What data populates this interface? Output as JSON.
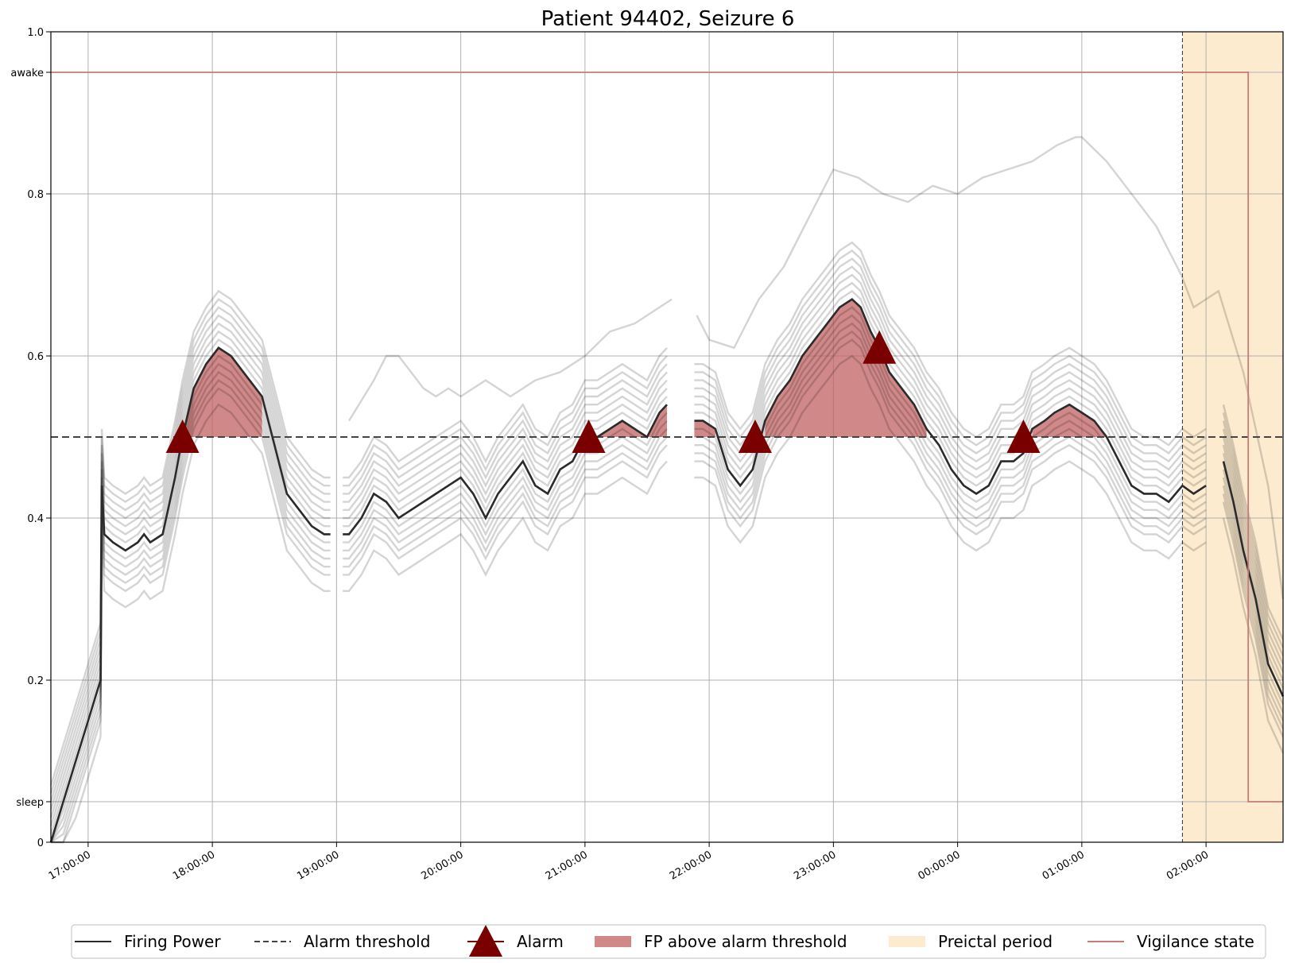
{
  "chart_data": {
    "type": "line",
    "title": "Patient 94402, Seizure 6",
    "xlabel": "",
    "ylabel": "",
    "ylim": [
      0,
      1.0
    ],
    "xlim_hours": [
      16.7,
      26.62
    ],
    "x_ticks": [
      {
        "label": "17:00:00",
        "hour": 17
      },
      {
        "label": "18:00:00",
        "hour": 18
      },
      {
        "label": "19:00:00",
        "hour": 19
      },
      {
        "label": "20:00:00",
        "hour": 20
      },
      {
        "label": "21:00:00",
        "hour": 21
      },
      {
        "label": "22:00:00",
        "hour": 22
      },
      {
        "label": "23:00:00",
        "hour": 23
      },
      {
        "label": "00:00:00",
        "hour": 24
      },
      {
        "label": "01:00:00",
        "hour": 25
      },
      {
        "label": "02:00:00",
        "hour": 26
      }
    ],
    "y_ticks": [
      {
        "label": "0",
        "value": 0
      },
      {
        "label": "sleep",
        "value": 0.05
      },
      {
        "label": "0.2",
        "value": 0.2
      },
      {
        "label": "0.4",
        "value": 0.4
      },
      {
        "label": "0.6",
        "value": 0.6
      },
      {
        "label": "0.8",
        "value": 0.8
      },
      {
        "label": "awake",
        "value": 0.95
      },
      {
        "label": "1.0",
        "value": 1.0
      }
    ],
    "grid": true,
    "alarm_threshold": 0.5,
    "preictal_period_hours": [
      25.81,
      26.62
    ],
    "alarm_times_hours": [
      17.76,
      21.03,
      22.37,
      23.37,
      24.53
    ],
    "firing_power": {
      "hours": [
        16.7,
        16.8,
        16.9,
        17.0,
        17.06,
        17.1,
        17.11,
        17.13,
        17.2,
        17.3,
        17.4,
        17.45,
        17.5,
        17.6,
        17.7,
        17.76,
        17.85,
        17.95,
        18.05,
        18.15,
        18.25,
        18.4,
        18.5,
        18.6,
        18.7,
        18.8,
        18.9,
        18.95,
        19.0,
        19.05,
        19.1,
        19.2,
        19.3,
        19.4,
        19.5,
        19.6,
        19.7,
        19.8,
        19.9,
        20.0,
        20.1,
        20.2,
        20.3,
        20.4,
        20.5,
        20.6,
        20.7,
        20.8,
        20.9,
        21.0,
        21.03,
        21.1,
        21.2,
        21.3,
        21.4,
        21.5,
        21.6,
        21.66,
        21.72,
        21.8,
        21.88,
        21.95,
        22.05,
        22.15,
        22.25,
        22.35,
        22.45,
        22.55,
        22.65,
        22.75,
        22.85,
        22.95,
        23.05,
        23.15,
        23.22,
        23.3,
        23.37,
        23.45,
        23.55,
        23.65,
        23.75,
        23.85,
        23.95,
        24.05,
        24.15,
        24.25,
        24.35,
        24.45,
        24.53,
        24.6,
        24.7,
        24.78,
        24.9,
        25.0,
        25.1,
        25.2,
        25.3,
        25.4,
        25.5,
        25.6,
        25.7,
        25.81,
        25.9,
        26.0,
        26.1,
        26.14,
        26.22,
        26.3,
        26.4,
        26.5,
        26.62
      ],
      "values": [
        0,
        0.05,
        0.1,
        0.15,
        0.18,
        0.2,
        0.44,
        0.38,
        0.37,
        0.36,
        0.37,
        0.38,
        0.37,
        0.38,
        0.45,
        0.5,
        0.56,
        0.59,
        0.61,
        0.6,
        0.58,
        0.55,
        0.49,
        0.43,
        0.41,
        0.39,
        0.38,
        0.38,
        null,
        0.38,
        0.38,
        0.4,
        0.43,
        0.42,
        0.4,
        0.41,
        0.42,
        0.43,
        0.44,
        0.45,
        0.43,
        0.4,
        0.43,
        0.45,
        0.47,
        0.44,
        0.43,
        0.46,
        0.47,
        0.5,
        0.5,
        0.5,
        0.51,
        0.52,
        0.51,
        0.5,
        0.53,
        0.54,
        null,
        null,
        0.52,
        0.52,
        0.51,
        0.46,
        0.44,
        0.46,
        0.52,
        0.55,
        0.57,
        0.6,
        0.62,
        0.64,
        0.66,
        0.67,
        0.66,
        0.63,
        0.61,
        0.58,
        0.56,
        0.54,
        0.51,
        0.49,
        0.46,
        0.44,
        0.43,
        0.44,
        0.47,
        0.47,
        0.48,
        0.51,
        0.52,
        0.53,
        0.54,
        0.53,
        0.52,
        0.5,
        0.47,
        0.44,
        0.43,
        0.43,
        0.42,
        0.44,
        0.43,
        0.44,
        null,
        0.47,
        0.42,
        0.36,
        0.3,
        0.22,
        0.18
      ]
    },
    "individual_runs_offsets": [
      0.0,
      0.03,
      -0.03,
      0.05,
      -0.05,
      0.02,
      -0.02,
      0.07,
      -0.07,
      0.04,
      -0.04,
      0.01,
      -0.01,
      0.06
    ],
    "outlier_run": {
      "hours": [
        18.95,
        19.1,
        19.3,
        19.4,
        19.5,
        19.6,
        19.7,
        19.8,
        19.9,
        20.0,
        20.2,
        20.4,
        20.6,
        20.8,
        21.0,
        21.2,
        21.4,
        21.6,
        21.7,
        21.8,
        21.9,
        22.0,
        22.2,
        22.4,
        22.6,
        22.8,
        23.0,
        23.2,
        23.4,
        23.6,
        23.8,
        24.0,
        24.2,
        24.4,
        24.6,
        24.8,
        24.95,
        25.0,
        25.2,
        25.4,
        25.6,
        25.8,
        25.9,
        26.0,
        26.1,
        26.3,
        26.5,
        26.62
      ],
      "values": [
        null,
        0.52,
        0.57,
        0.6,
        0.6,
        0.58,
        0.56,
        0.55,
        0.56,
        0.55,
        0.57,
        0.55,
        0.57,
        0.58,
        0.6,
        0.63,
        0.64,
        0.66,
        0.67,
        null,
        0.65,
        0.62,
        0.61,
        0.67,
        0.71,
        0.77,
        0.83,
        0.82,
        0.8,
        0.79,
        0.81,
        0.8,
        0.82,
        0.83,
        0.84,
        0.86,
        0.87,
        0.87,
        0.84,
        0.8,
        0.76,
        0.7,
        0.66,
        0.67,
        0.68,
        0.58,
        0.44,
        0.3
      ]
    },
    "vigilance_state": {
      "hours": [
        16.7,
        26.34,
        26.34,
        26.62
      ],
      "values": [
        0.95,
        0.95,
        0.05,
        0.05
      ]
    },
    "legend": {
      "position": "bottom",
      "entries": [
        {
          "label": "Firing Power",
          "symbol": "line-solid"
        },
        {
          "label": "Alarm threshold",
          "symbol": "line-dashed"
        },
        {
          "label": "Alarm",
          "symbol": "triangle"
        },
        {
          "label": "FP above alarm threshold",
          "symbol": "fill-red"
        },
        {
          "label": "Preictal period",
          "symbol": "fill-orange"
        },
        {
          "label": "Vigilance state",
          "symbol": "line-red"
        }
      ]
    },
    "colors": {
      "firing_power": "#2b2b2b",
      "runs": "#000000",
      "threshold": "#444444",
      "alarm": "#7a0000",
      "fp_above_fill": "#c06060",
      "preictal_fill": "#fdebcf",
      "vigilance": "#c87a7a",
      "grid": "#b0b0b0"
    }
  }
}
